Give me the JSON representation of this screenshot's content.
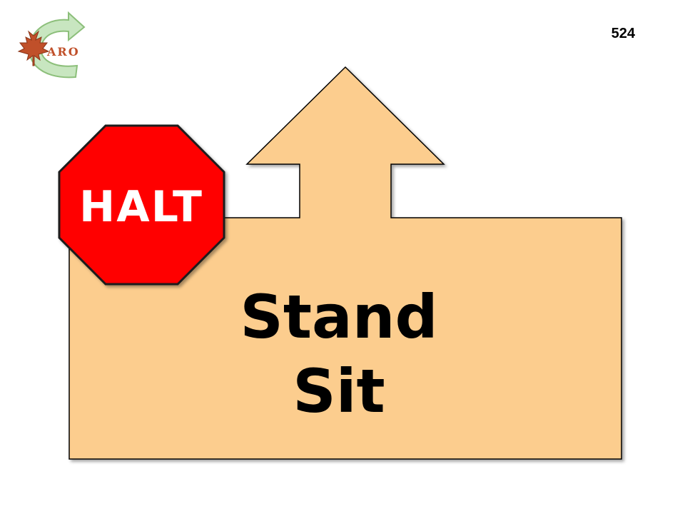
{
  "logo": {
    "text": "ARO",
    "icon": "maple-leaf-arrow-logo"
  },
  "page_number": "524",
  "stop_sign": {
    "label": "HALT",
    "color": "#FF0000"
  },
  "sign": {
    "lines": [
      "Stand",
      "Sit"
    ],
    "fill_color": "#FCCD8E",
    "arrow_direction": "up"
  }
}
